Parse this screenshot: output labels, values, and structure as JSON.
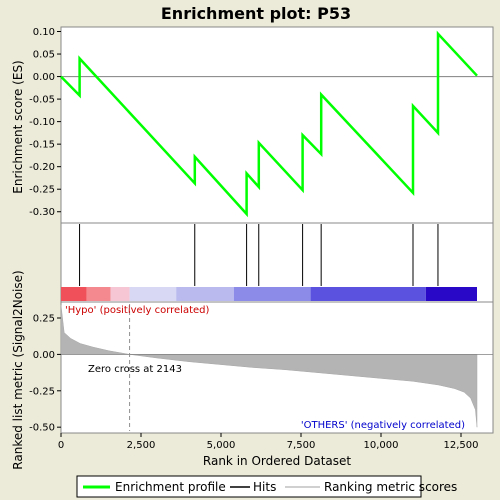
{
  "chart_data": {
    "type": "line",
    "title": "Enrichment plot: P53",
    "top_panel": {
      "ylabel": "Enrichment score (ES)",
      "ylim": [
        -0.325,
        0.11
      ],
      "yticks": [
        0.1,
        0.05,
        0.0,
        -0.05,
        -0.1,
        -0.15,
        -0.2,
        -0.25,
        -0.3
      ],
      "ytick_labels": [
        "0.10",
        "0.05",
        "0.00",
        "-0.05",
        "-0.10",
        "-0.15",
        "-0.20",
        "-0.25",
        "-0.30"
      ],
      "series": [
        {
          "name": "Enrichment profile",
          "color": "#00ff00",
          "x": [
            0,
            580,
            580,
            4180,
            4180,
            5800,
            5800,
            6180,
            6180,
            7550,
            7550,
            8130,
            8130,
            11000,
            11000,
            11780,
            11780,
            13000
          ],
          "y": [
            0.0,
            -0.042,
            0.04,
            -0.237,
            -0.178,
            -0.305,
            -0.215,
            -0.245,
            -0.147,
            -0.252,
            -0.13,
            -0.172,
            -0.04,
            -0.258,
            -0.065,
            -0.125,
            0.095,
            0.002
          ]
        }
      ]
    },
    "hits": {
      "name": "Hits",
      "positions": [
        580,
        4180,
        5800,
        6180,
        7550,
        8130,
        11000,
        11780
      ]
    },
    "color_bar": {
      "stops": [
        {
          "start": 0,
          "end": 800,
          "color": "#f0505a"
        },
        {
          "start": 800,
          "end": 1550,
          "color": "#f48a90"
        },
        {
          "start": 1550,
          "end": 2143,
          "color": "#f7c6d4"
        },
        {
          "start": 2143,
          "end": 3600,
          "color": "#d8d8f4"
        },
        {
          "start": 3600,
          "end": 5400,
          "color": "#babaee"
        },
        {
          "start": 5400,
          "end": 7800,
          "color": "#8c8ce8"
        },
        {
          "start": 7800,
          "end": 11400,
          "color": "#5c52e0"
        },
        {
          "start": 11400,
          "end": 13000,
          "color": "#2a08c8"
        }
      ]
    },
    "bottom_panel": {
      "ylabel": "Ranked list metric (Signal2Noise)",
      "ylim": [
        -0.54,
        0.36
      ],
      "yticks": [
        0.25,
        0.0,
        -0.25,
        -0.5
      ],
      "ytick_labels": [
        "0.25",
        "0.00",
        "-0.25",
        "-0.50"
      ],
      "metric_curve": {
        "name": "Ranking metric scores",
        "x": [
          0,
          100,
          300,
          600,
          1000,
          1500,
          2143,
          3000,
          4000,
          5000,
          6000,
          7000,
          8000,
          9000,
          10000,
          11000,
          11800,
          12300,
          12600,
          12800,
          12950,
          13000
        ],
        "y": [
          0.34,
          0.15,
          0.11,
          0.075,
          0.05,
          0.025,
          0.0,
          -0.025,
          -0.05,
          -0.07,
          -0.09,
          -0.105,
          -0.125,
          -0.145,
          -0.165,
          -0.185,
          -0.21,
          -0.235,
          -0.26,
          -0.3,
          -0.38,
          -0.5
        ]
      },
      "zero_cross": 2143,
      "zero_cross_label": "Zero cross at 2143",
      "pos_label": "'Hypo' (positively correlated)",
      "neg_label": "'OTHERS' (negatively correlated)"
    },
    "xaxis": {
      "label": "Rank in Ordered Dataset",
      "xlim": [
        0,
        13500
      ],
      "ticks": [
        0,
        2500,
        5000,
        7500,
        10000,
        12500
      ],
      "tick_labels": [
        "0",
        "2,500",
        "5,000",
        "7,500",
        "10,000",
        "12,500"
      ]
    },
    "legend": {
      "placement": "bottom",
      "items": [
        "Enrichment profile",
        "Hits",
        "Ranking metric scores"
      ]
    }
  }
}
